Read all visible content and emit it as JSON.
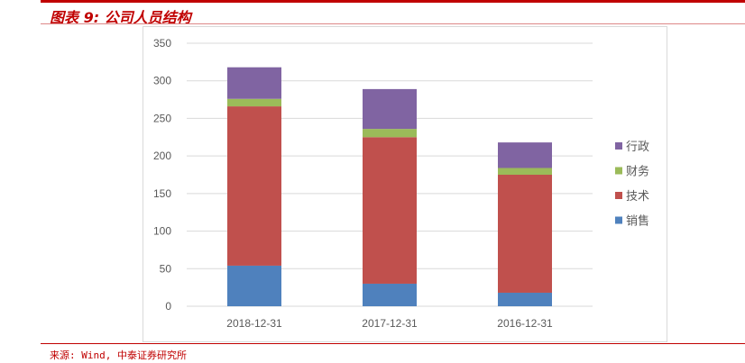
{
  "title": "图表 9: 公司人员结构",
  "source": "来源: Wind, 中泰证券研究所",
  "chart_data": {
    "type": "bar",
    "stacked": true,
    "categories": [
      "2018-12-31",
      "2017-12-31",
      "2016-12-31"
    ],
    "series": [
      {
        "name": "销售",
        "color": "#4f81bd",
        "values": [
          54,
          30,
          18
        ]
      },
      {
        "name": "技术",
        "color": "#c0504d",
        "values": [
          212,
          195,
          157
        ]
      },
      {
        "name": "财务",
        "color": "#9bbb59",
        "values": [
          10,
          11,
          9
        ]
      },
      {
        "name": "行政",
        "color": "#8064a2",
        "values": [
          42,
          53,
          34
        ]
      }
    ],
    "ylim": [
      0,
      350
    ],
    "yticks": [
      0,
      50,
      100,
      150,
      200,
      250,
      300,
      350
    ],
    "grid": true,
    "legend": "right"
  }
}
